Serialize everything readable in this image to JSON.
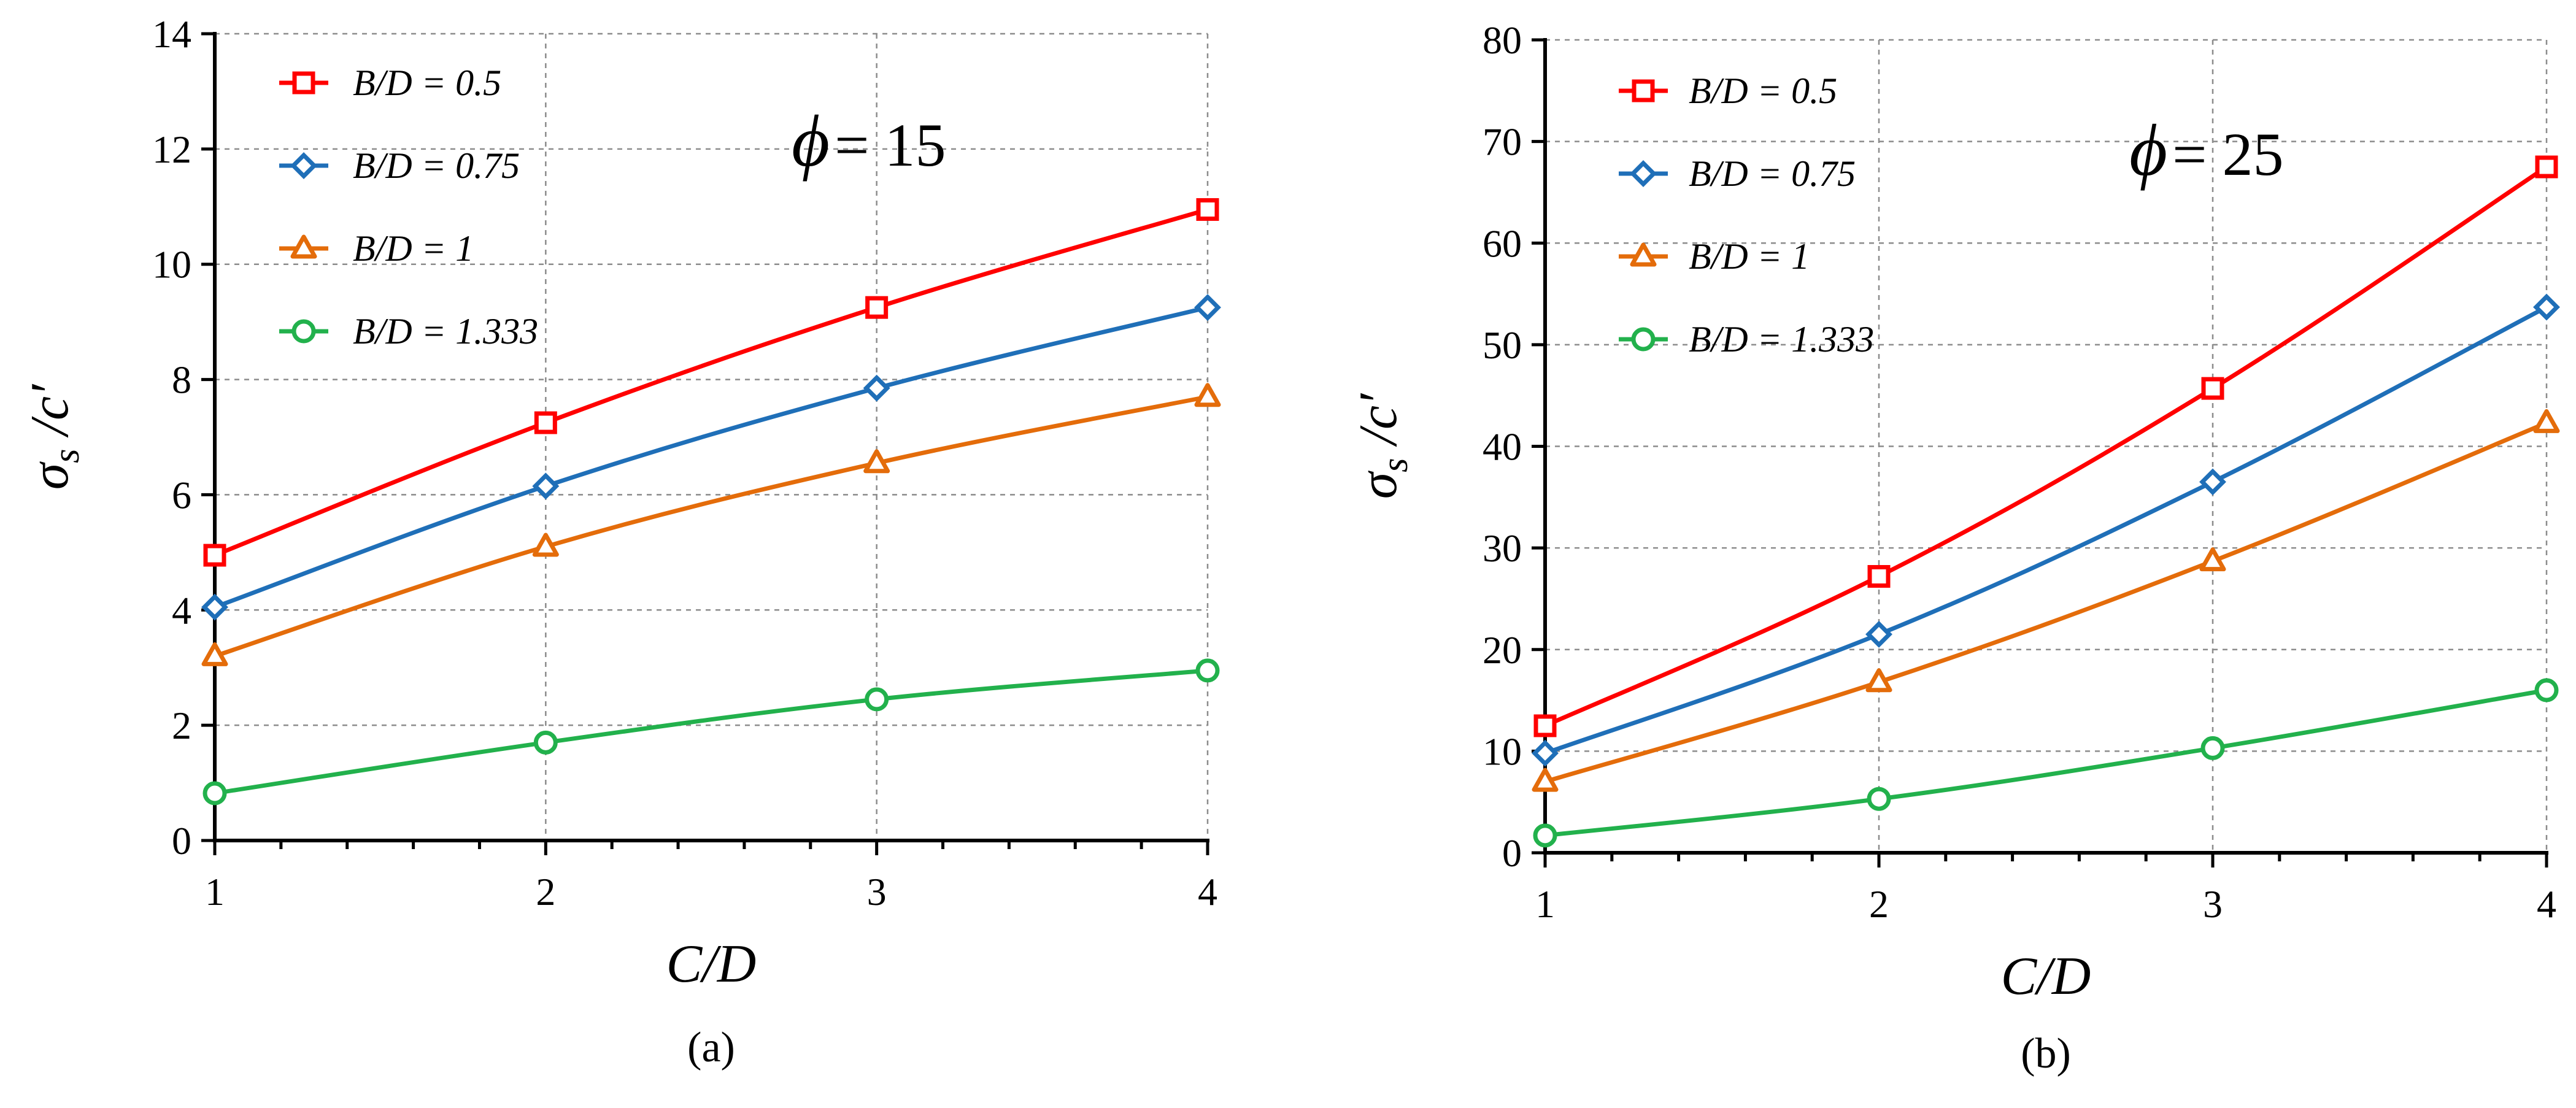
{
  "chart_data": [
    {
      "type": "line",
      "panel": "(a)",
      "annotation": {
        "symbol": "ϕ",
        "text": "= 15"
      },
      "xlabel": "C/D",
      "ylabel": {
        "main": "σ",
        "sub": "s",
        "rest": "/c′"
      },
      "x": [
        1,
        2,
        3,
        4
      ],
      "xlim": [
        1,
        4
      ],
      "ylim": [
        0,
        14
      ],
      "xticks": [
        "1",
        "2",
        "3",
        "4"
      ],
      "yticks": [
        "0",
        "2",
        "4",
        "6",
        "8",
        "10",
        "12",
        "14"
      ],
      "grid": true,
      "legend": "top-left",
      "series": [
        {
          "name": "B/D = 0.5",
          "color": "#ff0000",
          "marker": "square",
          "values": [
            4.95,
            7.25,
            9.25,
            10.95
          ]
        },
        {
          "name": "B/D = 0.75",
          "color": "#1f6fb8",
          "marker": "diamond",
          "values": [
            4.05,
            6.15,
            7.85,
            9.25
          ]
        },
        {
          "name": "B/D = 1",
          "color": "#e46c0a",
          "marker": "triangle",
          "values": [
            3.2,
            5.1,
            6.55,
            7.7
          ]
        },
        {
          "name": "B/D = 1.333",
          "color": "#22b14c",
          "marker": "circle",
          "values": [
            0.82,
            1.7,
            2.45,
            2.95
          ]
        }
      ]
    },
    {
      "type": "line",
      "panel": "(b)",
      "annotation": {
        "symbol": "ϕ",
        "text": "= 25"
      },
      "xlabel": "C/D",
      "ylabel": {
        "main": "σ",
        "sub": "s",
        "rest": "/c′"
      },
      "x": [
        1,
        2,
        3,
        4
      ],
      "xlim": [
        1,
        4
      ],
      "ylim": [
        0,
        80
      ],
      "xticks": [
        "1",
        "2",
        "3",
        "4"
      ],
      "yticks": [
        "0",
        "10",
        "20",
        "30",
        "40",
        "50",
        "60",
        "70",
        "80"
      ],
      "grid": true,
      "legend": "top-left",
      "series": [
        {
          "name": "B/D = 0.5",
          "color": "#ff0000",
          "marker": "square",
          "values": [
            12.5,
            27.2,
            45.7,
            67.5
          ]
        },
        {
          "name": "B/D = 0.75",
          "color": "#1f6fb8",
          "marker": "diamond",
          "values": [
            9.8,
            21.5,
            36.5,
            53.7
          ]
        },
        {
          "name": "B/D = 1",
          "color": "#e46c0a",
          "marker": "triangle",
          "values": [
            7.0,
            16.8,
            28.7,
            42.3
          ]
        },
        {
          "name": "B/D = 1.333",
          "color": "#22b14c",
          "marker": "circle",
          "values": [
            1.7,
            5.3,
            10.3,
            16.0
          ]
        }
      ]
    }
  ]
}
